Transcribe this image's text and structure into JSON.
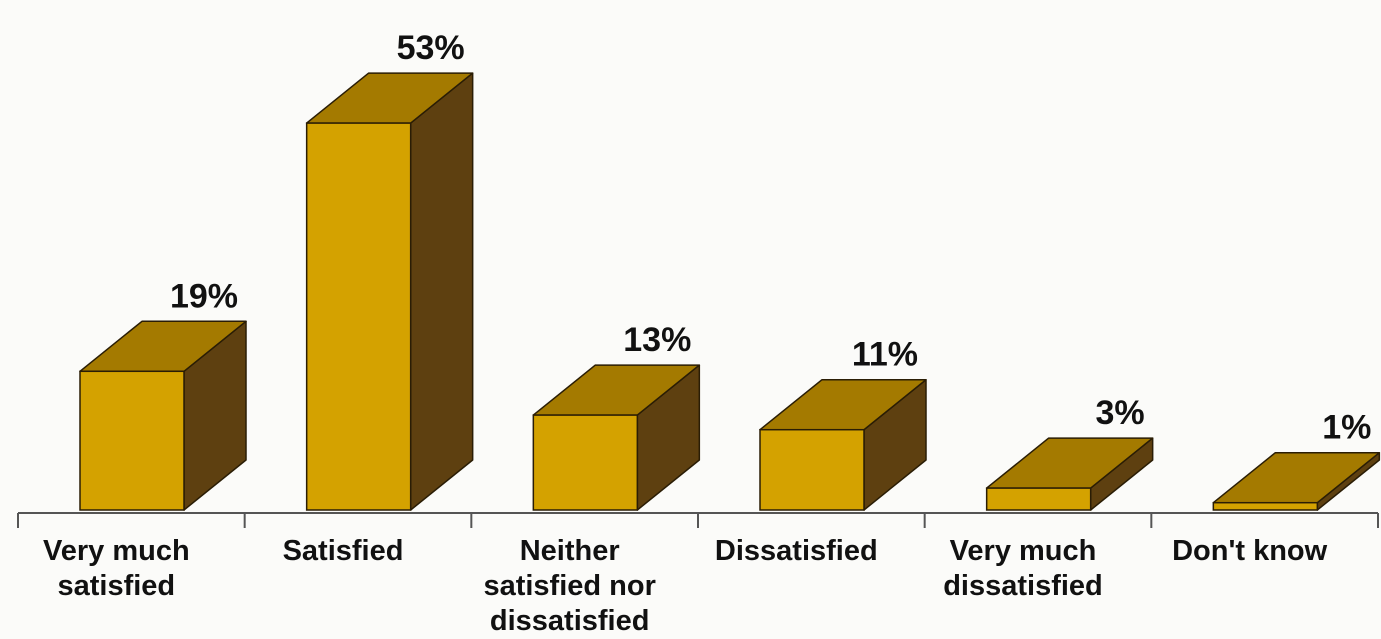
{
  "chart_data": {
    "type": "bar",
    "style": "3d",
    "categories": [
      [
        "Very much",
        "satisfied"
      ],
      [
        "Satisfied"
      ],
      [
        "Neither",
        "satisfied nor",
        "dissatisfied"
      ],
      [
        "Dissatisfied"
      ],
      [
        "Very much",
        "dissatisfied"
      ],
      [
        "Don't know"
      ]
    ],
    "values": [
      19,
      53,
      13,
      11,
      3,
      1
    ],
    "value_labels": [
      "19%",
      "53%",
      "13%",
      "11%",
      "3%",
      "1%"
    ],
    "unit": "%",
    "title": "",
    "xlabel": "",
    "ylabel": "",
    "ylim": [
      0,
      55
    ],
    "grid": false,
    "legend": "none",
    "colors": {
      "front": "#d4a200",
      "top": "#a47a00",
      "side": "#5e4010",
      "outline": "#2a1d05",
      "axis": "#555555"
    }
  }
}
